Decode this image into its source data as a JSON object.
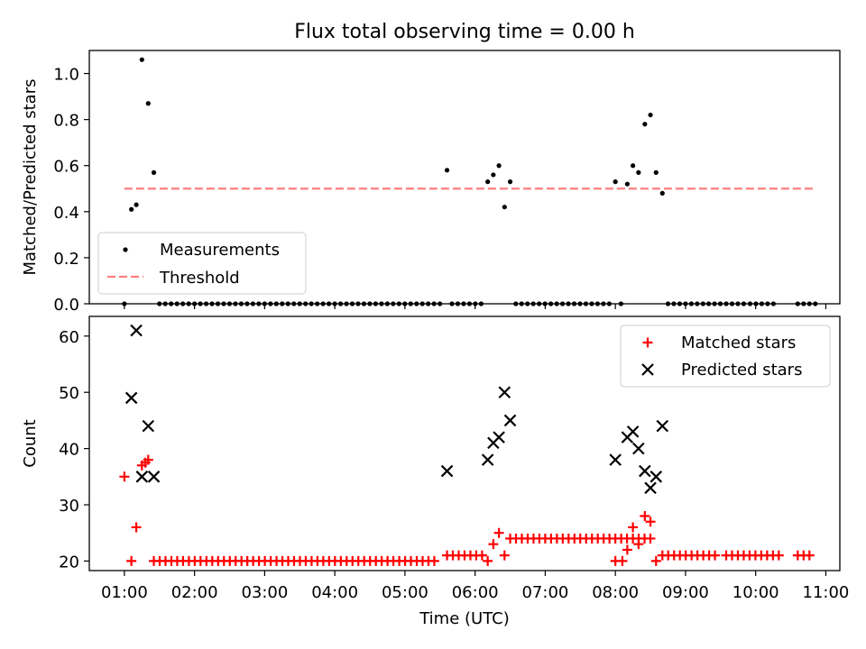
{
  "title": "Flux total observing time = 0.00 h",
  "chart_data": [
    {
      "type": "scatter",
      "panel": "top",
      "title": "Flux total observing time = 0.00 h",
      "ylabel": "Matched/Predicted stars",
      "xlabel": "",
      "xlim_hours": [
        0.5,
        11.2
      ],
      "ylim": [
        0,
        1.1
      ],
      "yticks": [
        0.0,
        0.2,
        0.4,
        0.6,
        0.8,
        1.0
      ],
      "ytick_labels": [
        "0.0",
        "0.2",
        "0.4",
        "0.6",
        "0.8",
        "1.0"
      ],
      "legend_position": "lower-left",
      "legend": [
        "Measurements",
        "Threshold"
      ],
      "series": [
        {
          "name": "Measurements",
          "marker": "dot",
          "color": "#000000",
          "x_hours": [
            1.0,
            1.1,
            1.17,
            1.25,
            1.34,
            1.42,
            5.6,
            6.18,
            6.26,
            6.34,
            6.42,
            6.5,
            8.0,
            8.17,
            8.25,
            8.33,
            8.42,
            8.5,
            8.58,
            8.67
          ],
          "y": [
            0.0,
            0.41,
            0.43,
            1.06,
            0.87,
            0.57,
            0.58,
            0.53,
            0.56,
            0.6,
            0.42,
            0.53,
            0.53,
            0.52,
            0.6,
            0.57,
            0.78,
            0.82,
            0.57,
            0.48
          ]
        },
        {
          "name": "Measurements (zero)",
          "marker": "dot",
          "color": "#000000",
          "x_ranges_hours": [
            [
              1.5,
              5.5
            ],
            [
              5.67,
              6.1
            ],
            [
              6.58,
              7.92
            ],
            [
              8.08,
              8.1
            ],
            [
              8.75,
              9.25
            ],
            [
              9.33,
              9.5
            ],
            [
              9.58,
              9.83
            ],
            [
              9.92,
              10.33
            ],
            [
              10.6,
              10.85
            ]
          ],
          "spacing_hours": 0.0833,
          "y": 0.0
        },
        {
          "name": "Threshold",
          "style": "dashed",
          "color": "#ff7f7f",
          "x_hours": [
            1.0,
            10.83
          ],
          "y": [
            0.5,
            0.5
          ]
        }
      ]
    },
    {
      "type": "scatter",
      "panel": "bottom",
      "xlabel": "Time (UTC)",
      "ylabel": "Count",
      "xlim_hours": [
        0.5,
        11.2
      ],
      "ylim": [
        18.3,
        63.5
      ],
      "yticks": [
        20,
        30,
        40,
        50,
        60
      ],
      "ytick_labels": [
        "20",
        "30",
        "40",
        "50",
        "60"
      ],
      "xticks_hours": [
        1,
        2,
        3,
        4,
        5,
        6,
        7,
        8,
        9,
        10,
        11
      ],
      "xtick_labels": [
        "01:00",
        "02:00",
        "03:00",
        "04:00",
        "05:00",
        "06:00",
        "07:00",
        "08:00",
        "09:00",
        "10:00",
        "11:00"
      ],
      "legend_position": "upper-right",
      "legend": [
        "Matched stars",
        "Predicted stars"
      ],
      "series": [
        {
          "name": "Matched stars",
          "marker": "plus",
          "color": "#ff0000",
          "x_hours": [
            1.0,
            1.1,
            1.17,
            1.25,
            1.3,
            1.34,
            6.18,
            6.26,
            6.34,
            6.42,
            8.0,
            8.1,
            8.17,
            8.25,
            8.33,
            8.42,
            8.5,
            8.58
          ],
          "y": [
            35,
            20,
            26,
            37,
            37.5,
            38,
            20,
            23,
            25,
            21,
            20,
            20,
            22,
            26,
            23,
            28,
            27,
            20
          ]
        },
        {
          "name": "Matched stars (baseline)",
          "marker": "plus",
          "color": "#ff0000",
          "ranges": [
            {
              "x_hours": [
                1.42,
                5.5
              ],
              "y": 20
            },
            {
              "x_hours": [
                5.6,
                6.1
              ],
              "y": 21
            },
            {
              "x_hours": [
                6.5,
                8.58
              ],
              "y": 24
            },
            {
              "x_hours": [
                8.67,
                9.5
              ],
              "y": 21
            },
            {
              "x_hours": [
                9.58,
                10.33
              ],
              "y": 21
            },
            {
              "x_hours": [
                10.6,
                10.83
              ],
              "y": 21
            }
          ],
          "spacing_hours": 0.0833
        },
        {
          "name": "Predicted stars",
          "marker": "x",
          "color": "#000000",
          "x_hours": [
            1.1,
            1.17,
            1.25,
            1.34,
            1.42,
            5.6,
            6.18,
            6.26,
            6.34,
            6.42,
            6.5,
            8.0,
            8.17,
            8.25,
            8.33,
            8.42,
            8.5,
            8.58,
            8.67
          ],
          "y": [
            49,
            61,
            35,
            44,
            35,
            36,
            38,
            41,
            42,
            50,
            45,
            38,
            42,
            43,
            40,
            36,
            33,
            35,
            44
          ]
        }
      ]
    }
  ]
}
